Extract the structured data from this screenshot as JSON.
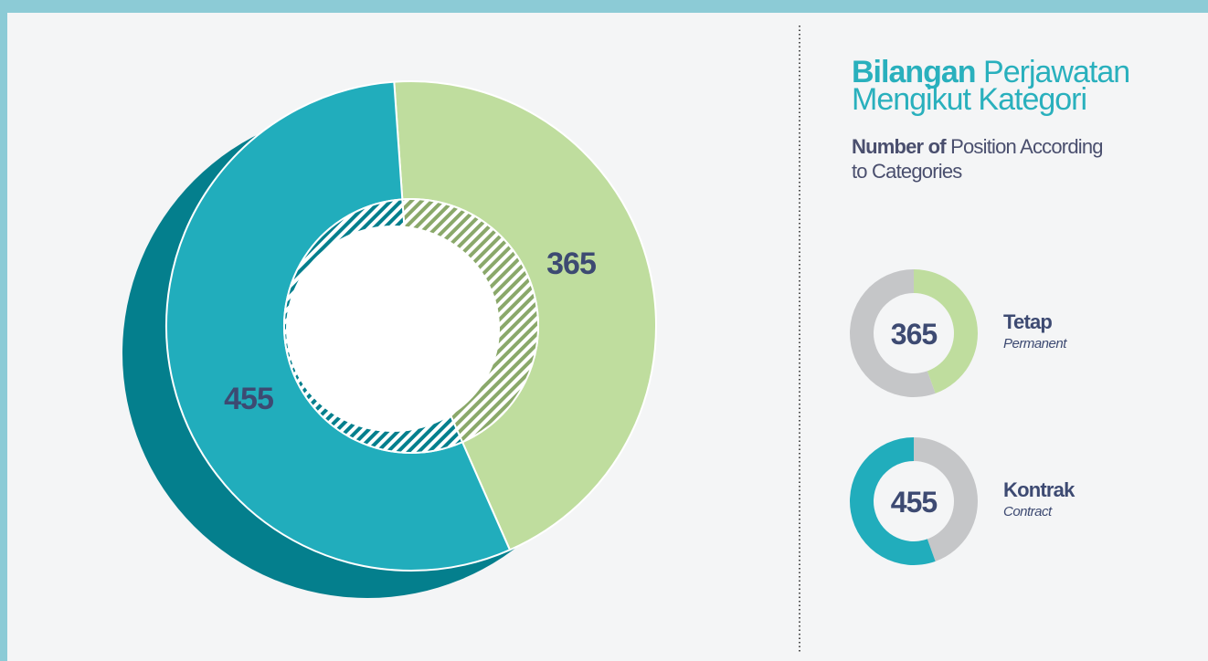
{
  "chart_data": {
    "type": "donut",
    "title": [
      "Bilangan",
      "Perjawatan",
      "Mengikut Kategori"
    ],
    "subtitle": [
      "Number of",
      "Position According",
      "to Categories"
    ],
    "categories": [
      "Tetap",
      "Kontrak"
    ],
    "category_translations": [
      "Permanent",
      "Contract"
    ],
    "values": [
      365,
      455
    ],
    "colors": [
      "#bfdd9e",
      "#21adbc"
    ],
    "remainder_color": "#c5c6c8",
    "shadow_color": "#047f8d"
  }
}
